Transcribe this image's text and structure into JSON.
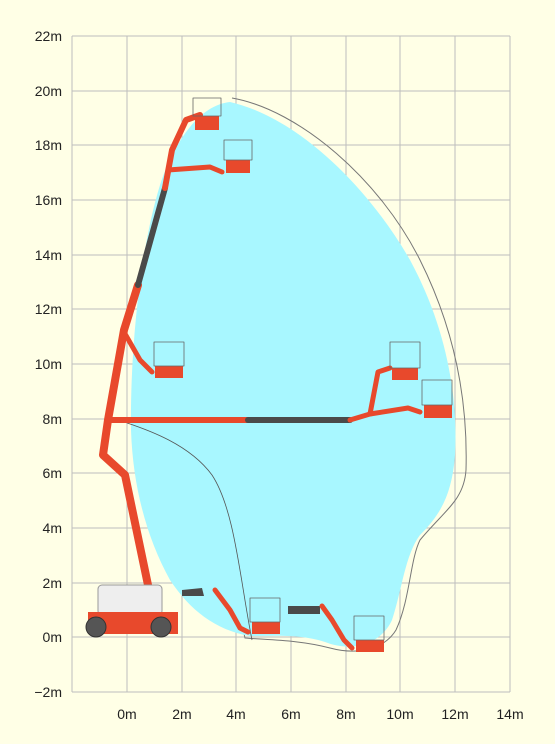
{
  "diagram": {
    "y_axis_ticks": [
      "22m",
      "20m",
      "18m",
      "16m",
      "14m",
      "12m",
      "10m",
      "8m",
      "6m",
      "4m",
      "2m",
      "0m",
      "−2m"
    ],
    "x_axis_ticks": [
      "0m",
      "2m",
      "4m",
      "6m",
      "8m",
      "10m",
      "12m",
      "14m"
    ],
    "colors": {
      "background": "#ffffe6",
      "grid": "#bdbdbd",
      "reach_envelope": "#a8f7ff",
      "boom": "#e8492c",
      "telescope": "#4a4a4a",
      "chassis": "#eeeeee"
    }
  }
}
